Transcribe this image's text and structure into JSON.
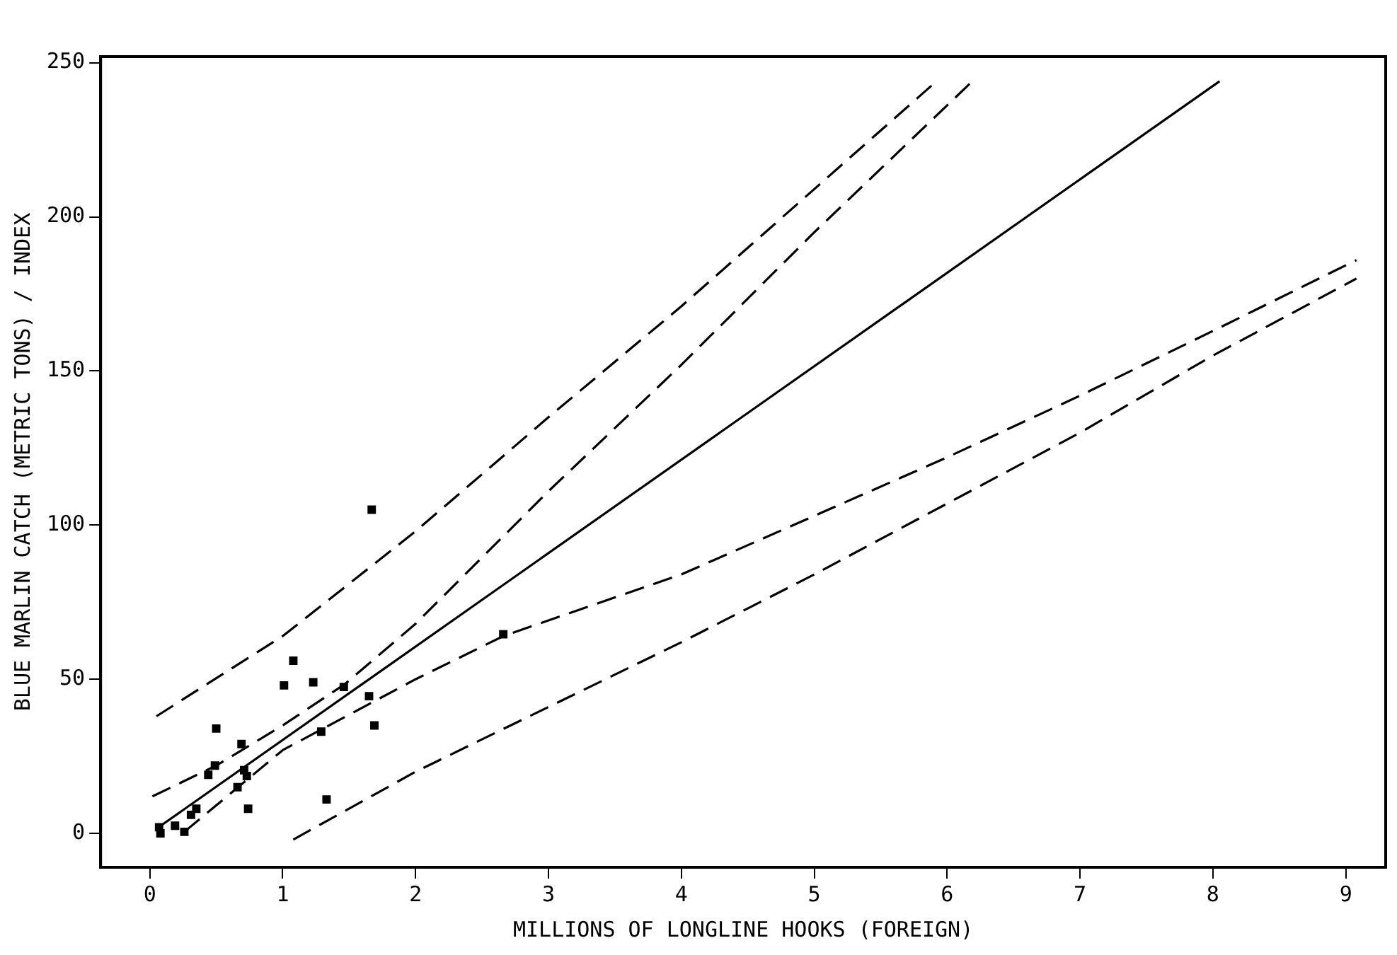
{
  "chart_data": {
    "type": "scatter",
    "xlabel": "MILLIONS OF LONGLINE HOOKS (FOREIGN)",
    "ylabel": "BLUE MARLIN CATCH (METRIC TONS) / INDEX",
    "xlim": [
      -0.37,
      9.3
    ],
    "ylim": [
      -11,
      252
    ],
    "xticks": [
      0,
      1,
      2,
      3,
      4,
      5,
      6,
      7,
      8,
      9
    ],
    "yticks": [
      0,
      50,
      100,
      150,
      200,
      250
    ],
    "grid": false,
    "legend": false,
    "series": [
      {
        "color": "#000000",
        "marker": "square",
        "x": [
          0.08,
          0.07,
          0.19,
          0.26,
          0.31,
          0.35,
          0.44,
          0.49,
          0.5,
          0.66,
          0.69,
          0.71,
          0.73,
          0.74,
          1.01,
          1.08,
          1.23,
          1.29,
          1.46,
          1.33,
          1.65,
          1.69,
          1.67,
          2.66
        ],
        "values": [
          0,
          2,
          2.5,
          0.5,
          6,
          8,
          19,
          22,
          34,
          15,
          29,
          20.5,
          18.6,
          8,
          48,
          56,
          49,
          33,
          47.5,
          11,
          44.5,
          35,
          105,
          64.6
        ]
      },
      {
        "type": "line",
        "color": "#000000",
        "line_style": "solid",
        "marker": "none",
        "x": [
          0.05,
          8.05
        ],
        "values": [
          1.5,
          244
        ]
      },
      {
        "type": "line",
        "color": "#000000",
        "line_style": "dashed",
        "marker": "none",
        "x": [
          0.05,
          1,
          2,
          3,
          4,
          5,
          5.92
        ],
        "values": [
          38,
          64,
          98,
          135,
          171,
          209,
          244
        ]
      },
      {
        "type": "line",
        "color": "#000000",
        "line_style": "dashed",
        "marker": "none",
        "x": [
          0.02,
          0.5,
          1,
          1.47,
          2,
          3,
          4,
          5,
          6.19
        ],
        "values": [
          12,
          22,
          35,
          48.5,
          68,
          111,
          152,
          195,
          244
        ]
      },
      {
        "type": "line",
        "color": "#000000",
        "line_style": "dashed",
        "marker": "none",
        "x": [
          0.26,
          1,
          2,
          2.66,
          4,
          5,
          6,
          7,
          8,
          9.08
        ],
        "values": [
          0.5,
          27,
          50,
          64,
          84,
          103,
          122,
          142,
          163,
          186
        ]
      },
      {
        "type": "line",
        "color": "#000000",
        "line_style": "dashed",
        "marker": "none",
        "x": [
          1.08,
          2,
          3,
          4,
          5,
          6,
          7,
          8,
          9.08
        ],
        "values": [
          -2,
          20,
          41,
          62,
          84,
          107,
          130,
          155,
          180
        ]
      }
    ]
  }
}
